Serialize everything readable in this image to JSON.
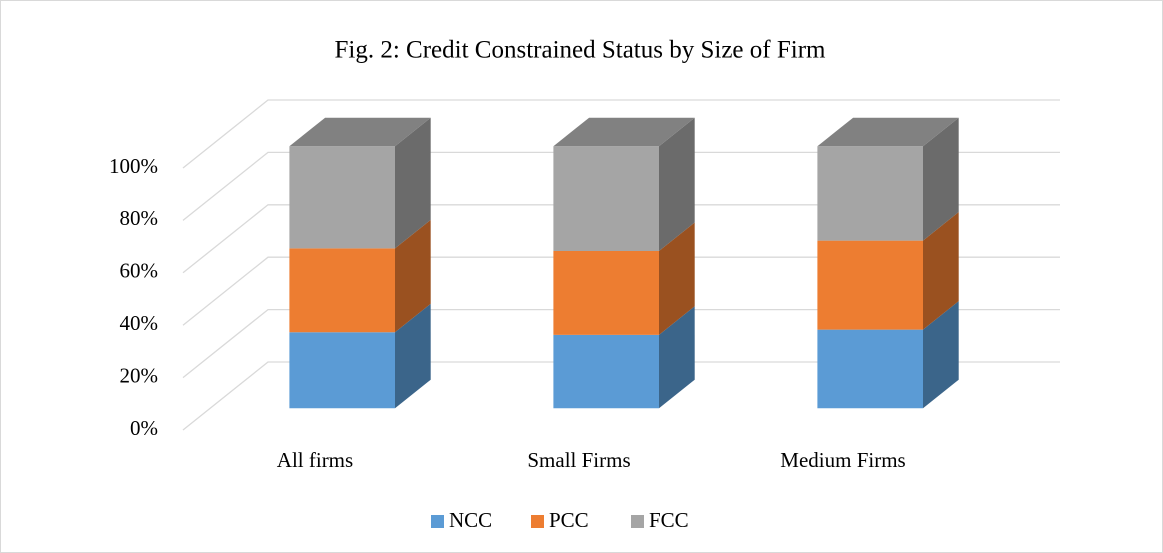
{
  "chart_data": {
    "type": "bar3d_stacked",
    "title": "Fig. 2: Credit Constrained Status by Size of Firm",
    "categories": [
      "All firms",
      "Small Firms",
      "Medium Firms"
    ],
    "series": [
      {
        "name": "NCC",
        "color": "#5b9bd5",
        "values": [
          29,
          28,
          30
        ]
      },
      {
        "name": "PCC",
        "color": "#ed7d31",
        "values": [
          32,
          32,
          34
        ]
      },
      {
        "name": "FCC",
        "color": "#a5a5a5",
        "values": [
          39,
          40,
          36
        ]
      }
    ],
    "ylim": [
      0,
      100
    ],
    "yticks": [
      {
        "value": 0,
        "label": "0%"
      },
      {
        "value": 20,
        "label": "20%"
      },
      {
        "value": 40,
        "label": "40%"
      },
      {
        "value": 60,
        "label": "60%"
      },
      {
        "value": 80,
        "label": "80%"
      },
      {
        "value": 100,
        "label": "100%"
      }
    ],
    "grid": true
  }
}
